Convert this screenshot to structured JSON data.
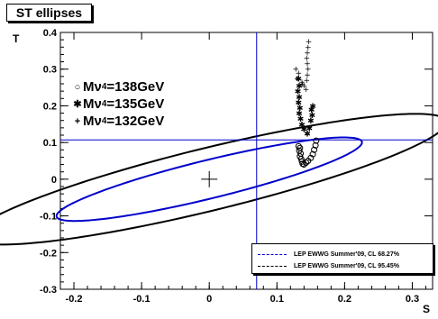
{
  "title": "ST ellipses",
  "xlabel": "S",
  "ylabel": "T",
  "mass_labels": [
    {
      "prefix": "Mν",
      "sub": "4",
      "suffix": "=138GeV",
      "marker": "circle-icon"
    },
    {
      "prefix": "Mν",
      "sub": "4",
      "suffix": "=135GeV",
      "marker": "asterisk-icon"
    },
    {
      "prefix": "Mν",
      "sub": "4",
      "suffix": "=132GeV",
      "marker": "plus-icon"
    }
  ],
  "legend": [
    {
      "label": "LEP EWWG Summer'09, CL 68.27%",
      "color": "#0000cc",
      "style": "dashed"
    },
    {
      "label": "LEP EWWG Summer'09, CL 95.45%",
      "color": "#000000",
      "style": "dashed"
    }
  ],
  "chart_data": {
    "type": "scatter",
    "title": "ST ellipses",
    "xlabel": "S",
    "ylabel": "T",
    "xlim": [
      -0.22,
      0.33
    ],
    "ylim": [
      -0.3,
      0.4
    ],
    "xticks": [
      -0.2,
      -0.1,
      0,
      0.1,
      0.2,
      0.3
    ],
    "yticks": [
      -0.3,
      -0.2,
      -0.1,
      0,
      0.1,
      0.2,
      0.3,
      0.4
    ],
    "tick_labels_x": [
      "-0.2",
      "-0.1",
      "0",
      "0.1",
      "0.2",
      "0.3"
    ],
    "tick_labels_y": [
      "-0.3",
      "-0.2",
      "-0.1",
      "0",
      "0.1",
      "0.2",
      "0.3",
      "0.4"
    ],
    "grid": false,
    "ellipses": [
      {
        "name": "LEP EWWG Summer'09, CL 68.27%",
        "center": [
          0.0,
          0.0
        ],
        "semi_major": 0.248,
        "semi_minor": 0.049,
        "angle_deg": 25,
        "color": "#0000cc"
      },
      {
        "name": "LEP EWWG Summer'09, CL 95.45%",
        "center": [
          0.0,
          0.0
        ],
        "semi_major": 0.385,
        "semi_minor": 0.08,
        "angle_deg": 25,
        "color": "#000000"
      }
    ],
    "crosshair": {
      "x": 0.07,
      "y": 0.107,
      "color": "#0000cc"
    },
    "center_marker": [
      0.0,
      0.0
    ],
    "series": [
      {
        "name": "Mν4=138GeV",
        "marker": "circle",
        "points": [
          [
            0.132,
            0.09
          ],
          [
            0.134,
            0.085
          ],
          [
            0.133,
            0.078
          ],
          [
            0.135,
            0.07
          ],
          [
            0.134,
            0.062
          ],
          [
            0.136,
            0.055
          ],
          [
            0.137,
            0.048
          ],
          [
            0.138,
            0.042
          ],
          [
            0.14,
            0.04
          ],
          [
            0.143,
            0.045
          ],
          [
            0.146,
            0.05
          ],
          [
            0.15,
            0.058
          ],
          [
            0.153,
            0.068
          ],
          [
            0.155,
            0.08
          ],
          [
            0.157,
            0.092
          ],
          [
            0.158,
            0.105
          ]
        ]
      },
      {
        "name": "Mν4=135GeV",
        "marker": "asterisk",
        "points": [
          [
            0.132,
            0.275
          ],
          [
            0.133,
            0.255
          ],
          [
            0.131,
            0.24
          ],
          [
            0.133,
            0.225
          ],
          [
            0.132,
            0.21
          ],
          [
            0.134,
            0.195
          ],
          [
            0.133,
            0.18
          ],
          [
            0.135,
            0.165
          ],
          [
            0.137,
            0.15
          ],
          [
            0.14,
            0.137
          ],
          [
            0.145,
            0.125
          ],
          [
            0.148,
            0.14
          ],
          [
            0.15,
            0.16
          ],
          [
            0.152,
            0.175
          ],
          [
            0.151,
            0.19
          ],
          [
            0.153,
            0.2
          ]
        ]
      },
      {
        "name": "Mν4=132GeV",
        "marker": "plus",
        "points": [
          [
            0.128,
            0.3
          ],
          [
            0.132,
            0.29
          ],
          [
            0.13,
            0.275
          ],
          [
            0.137,
            0.265
          ],
          [
            0.14,
            0.255
          ],
          [
            0.143,
            0.245
          ],
          [
            0.138,
            0.26
          ],
          [
            0.144,
            0.27
          ],
          [
            0.145,
            0.285
          ],
          [
            0.146,
            0.3
          ],
          [
            0.145,
            0.315
          ],
          [
            0.144,
            0.33
          ],
          [
            0.145,
            0.345
          ],
          [
            0.146,
            0.36
          ],
          [
            0.147,
            0.376
          ]
        ]
      }
    ]
  }
}
